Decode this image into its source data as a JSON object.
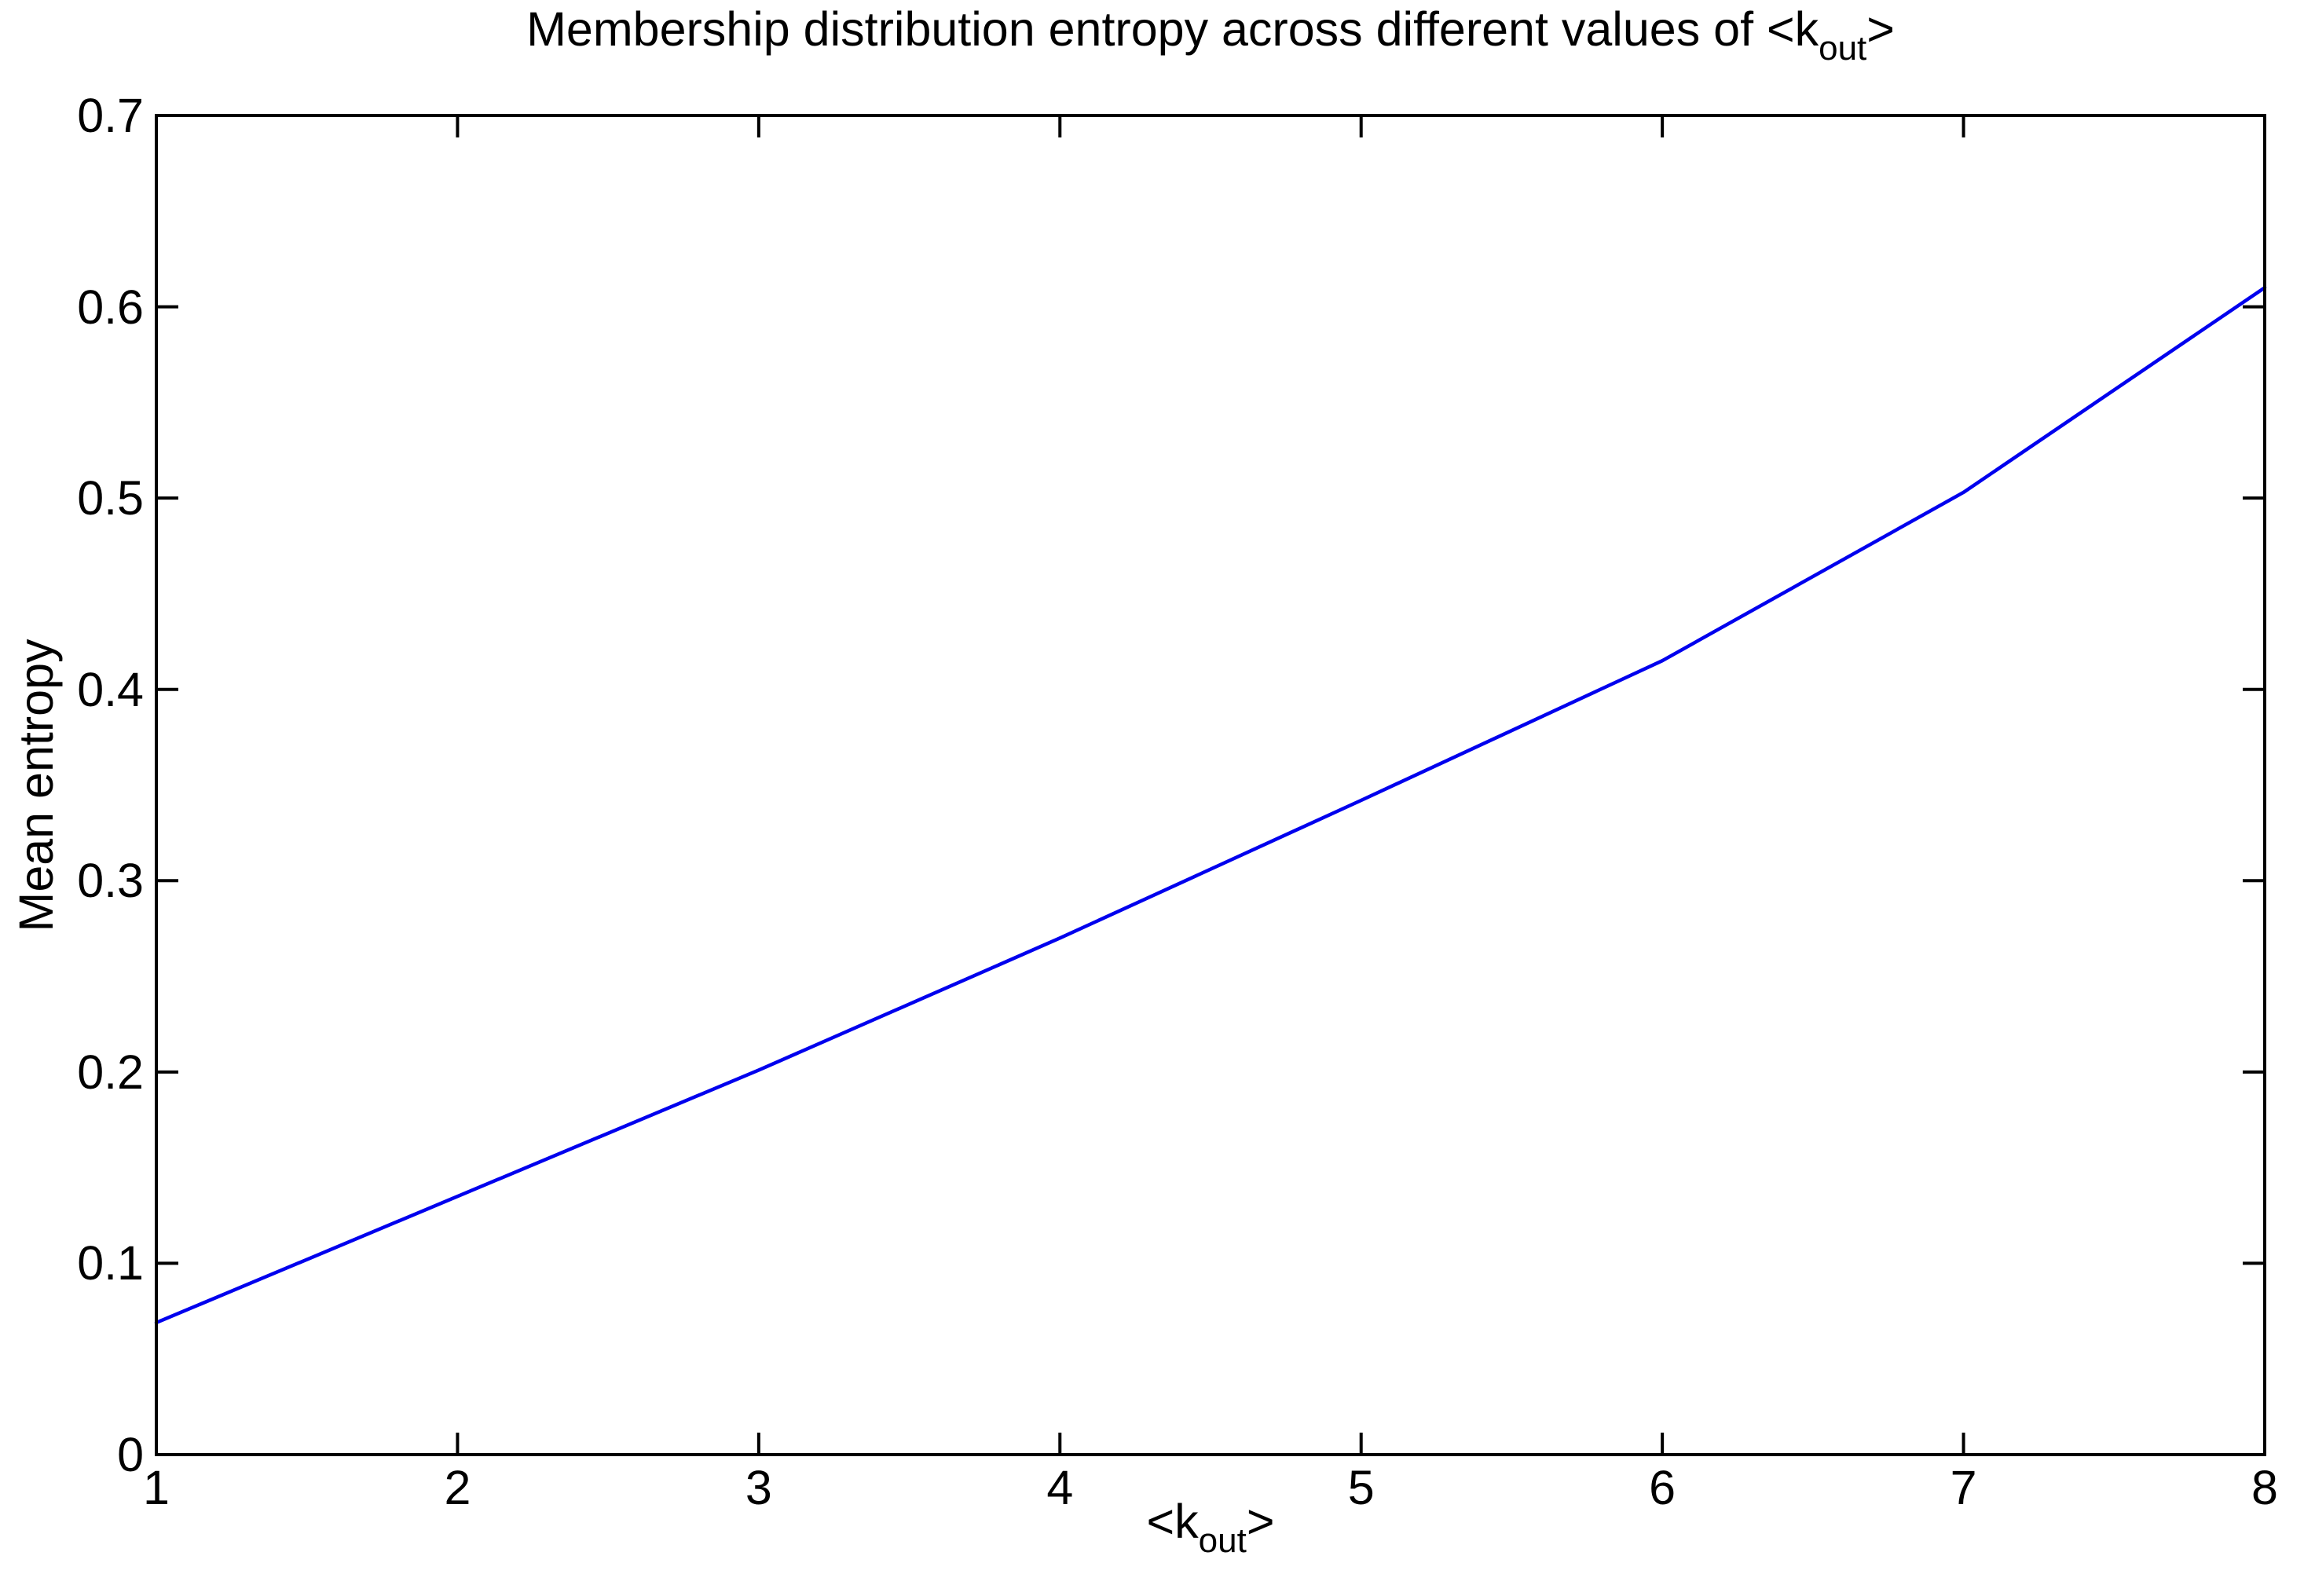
{
  "figure": {
    "background_color": "#ffffff",
    "axis_color": "#000000"
  },
  "chart_data": {
    "type": "line",
    "title": "Membership distribution entropy across different values of <k_out>",
    "title_parts": {
      "prefix": "Membership distribution entropy across different values of <k",
      "sub": "out",
      "suffix": ">"
    },
    "xlabel": "<k_out>",
    "xlabel_parts": {
      "prefix": "<k",
      "sub": "out",
      "suffix": ">"
    },
    "ylabel": "Mean entropy",
    "x": [
      1,
      2,
      3,
      4,
      5,
      6,
      7,
      8
    ],
    "y": [
      0.069,
      0.135,
      0.201,
      0.27,
      0.342,
      0.415,
      0.503,
      0.61
    ],
    "xlim": [
      1,
      8
    ],
    "ylim": [
      0,
      0.7
    ],
    "xticks": [
      1,
      2,
      3,
      4,
      5,
      6,
      7,
      8
    ],
    "xtick_labels": [
      "1",
      "2",
      "3",
      "4",
      "5",
      "6",
      "7",
      "8"
    ],
    "yticks": [
      0,
      0.1,
      0.2,
      0.3,
      0.4,
      0.5,
      0.6,
      0.7
    ],
    "ytick_labels": [
      "0",
      "0.1",
      "0.2",
      "0.3",
      "0.4",
      "0.5",
      "0.6",
      "0.7"
    ],
    "line_color": "#0000ee",
    "grid": false,
    "legend": null,
    "box": true
  }
}
